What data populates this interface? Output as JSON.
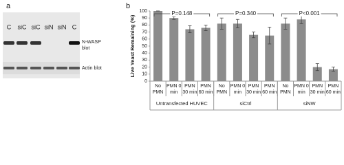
{
  "blot_panel": {
    "panel_label": "a",
    "lanes": [
      "C",
      "siC",
      "siC",
      "siN",
      "siN",
      "C"
    ],
    "nwasp_label": [
      "N-WASP",
      "blot"
    ],
    "actin_label": "Actin blot"
  },
  "chart_data": {
    "type": "bar",
    "panel_label": "b",
    "y_label": "Live Yeast Remaining (%)",
    "categories": [
      [
        "No",
        "PMN"
      ],
      [
        "PMN 0",
        "min"
      ],
      [
        "PMN",
        "30 min"
      ],
      [
        "PMN",
        "60 min"
      ],
      [
        "No",
        "PMN"
      ],
      [
        "PMN 0",
        "min"
      ],
      [
        "PMN",
        "30 min"
      ],
      [
        "PMN",
        "60 min"
      ],
      [
        "No",
        "PMN"
      ],
      [
        "PMN 0",
        "min"
      ],
      [
        "PMN",
        "30 min"
      ],
      [
        "PMN",
        "60 min"
      ]
    ],
    "groups": [
      {
        "label": "Untransfected HUVEC",
        "p_value": "P=0.148"
      },
      {
        "label": "siCtrl",
        "p_value": "P=0.340"
      },
      {
        "label": "siNW",
        "p_value": "P<0.001"
      }
    ],
    "series": [
      {
        "color": "#8c8c8c",
        "values": [
          100,
          90,
          74,
          76,
          82,
          82,
          66,
          65,
          82,
          88,
          20,
          17
        ],
        "errors": [
          0,
          2,
          5,
          4,
          8,
          6,
          4,
          12,
          8,
          6,
          5,
          3
        ]
      }
    ],
    "ylim": [
      0,
      100
    ],
    "yticks": [
      0,
      10,
      20,
      30,
      40,
      50,
      60,
      70,
      80,
      90,
      100
    ],
    "grid": false
  }
}
